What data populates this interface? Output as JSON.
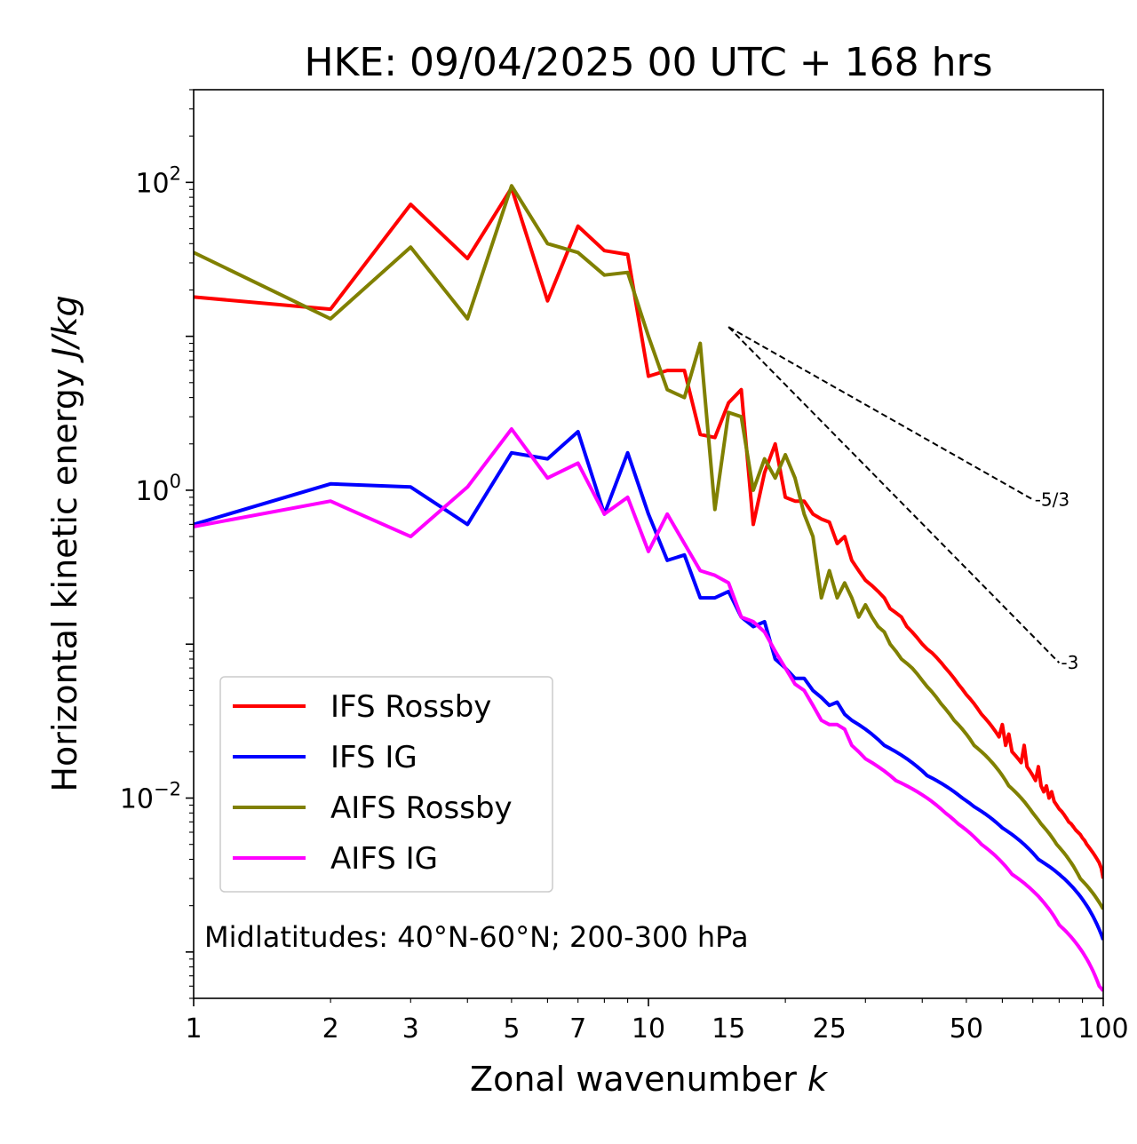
{
  "chart_data": {
    "type": "line",
    "title": "HKE: 09/04/2025 00 UTC + 168 hrs",
    "xlabel": "Zonal wavenumber",
    "xlabel_var": "k",
    "ylabel": "Horizontal kinetic energy",
    "ylabel_unit": "J/kg",
    "xscale": "log",
    "yscale": "log",
    "xlim": [
      1,
      100
    ],
    "ylim": [
      0.0005,
      400
    ],
    "x_ticks": [
      {
        "value": 1,
        "label": "1"
      },
      {
        "value": 2,
        "label": "2"
      },
      {
        "value": 3,
        "label": "3"
      },
      {
        "value": 5,
        "label": "5"
      },
      {
        "value": 7,
        "label": "7"
      },
      {
        "value": 10,
        "label": "10"
      },
      {
        "value": 15,
        "label": "15"
      },
      {
        "value": 25,
        "label": "25"
      },
      {
        "value": 50,
        "label": "50"
      },
      {
        "value": 100,
        "label": "100"
      }
    ],
    "y_ticks": [
      {
        "value": 100,
        "base": "10",
        "exp": "2"
      },
      {
        "value": 1,
        "base": "10",
        "exp": "0"
      },
      {
        "value": 0.01,
        "base": "10",
        "exp": "−2"
      }
    ],
    "legend_placement": "lower-left",
    "annotation": "Midlatitudes: 40°N-60°N; 200-300 hPa",
    "reference_slopes": [
      {
        "label": "-5/3",
        "x": [
          15,
          70
        ],
        "y": [
          11.5,
          0.87
        ]
      },
      {
        "label": "-3",
        "x": [
          15,
          80
        ],
        "y": [
          11.5,
          0.0757
        ]
      }
    ],
    "series": [
      {
        "name": "IFS Rossby",
        "color": "#ff0000",
        "x": [
          1,
          2,
          3,
          4,
          5,
          6,
          7,
          8,
          9,
          10,
          11,
          12,
          13,
          14,
          15,
          16,
          17,
          18,
          19,
          20,
          21,
          22,
          23,
          24,
          25,
          26,
          27,
          28,
          29,
          30,
          31,
          32,
          33,
          34,
          35,
          36,
          37,
          38,
          39,
          40,
          41,
          42,
          43,
          44,
          45,
          46,
          47,
          48,
          49,
          50,
          51,
          52,
          53,
          54,
          55,
          56,
          57,
          58,
          59,
          60,
          61,
          62,
          63,
          64,
          65,
          66,
          67,
          68,
          69,
          70,
          71,
          72,
          73,
          74,
          75,
          76,
          77,
          78,
          79,
          80,
          81,
          82,
          83,
          84,
          85,
          86,
          87,
          88,
          89,
          90,
          91,
          92,
          93,
          94,
          95,
          96,
          97,
          98,
          99,
          100
        ],
        "y": [
          18,
          15,
          72,
          32,
          92,
          17,
          52,
          36,
          34,
          5.5,
          6,
          6,
          2.3,
          2.2,
          3.7,
          4.5,
          0.6,
          1.3,
          2,
          0.9,
          0.85,
          0.85,
          0.7,
          0.65,
          0.62,
          0.45,
          0.5,
          0.35,
          0.3,
          0.26,
          0.24,
          0.22,
          0.2,
          0.17,
          0.16,
          0.15,
          0.13,
          0.12,
          0.11,
          0.1,
          0.093,
          0.088,
          0.082,
          0.076,
          0.07,
          0.065,
          0.06,
          0.055,
          0.051,
          0.047,
          0.044,
          0.041,
          0.038,
          0.035,
          0.033,
          0.031,
          0.029,
          0.027,
          0.025,
          0.03,
          0.022,
          0.026,
          0.02,
          0.019,
          0.018,
          0.017,
          0.022,
          0.016,
          0.015,
          0.014,
          0.013,
          0.016,
          0.012,
          0.011,
          0.012,
          0.01,
          0.011,
          0.0095,
          0.009,
          0.0085,
          0.0082,
          0.0078,
          0.0074,
          0.007,
          0.0068,
          0.0065,
          0.0062,
          0.006,
          0.0058,
          0.0055,
          0.0053,
          0.005,
          0.0048,
          0.0046,
          0.0044,
          0.0042,
          0.004,
          0.0038,
          0.0035,
          0.003
        ]
      },
      {
        "name": "IFS IG",
        "color": "#0000ff",
        "x": [
          1,
          2,
          3,
          4,
          5,
          6,
          7,
          8,
          9,
          10,
          11,
          12,
          13,
          14,
          15,
          16,
          17,
          18,
          19,
          20,
          21,
          22,
          23,
          24,
          25,
          26,
          27,
          28,
          29,
          30,
          31,
          32,
          33,
          34,
          35,
          36,
          37,
          38,
          39,
          40,
          41,
          42,
          43,
          44,
          45,
          46,
          47,
          48,
          49,
          50,
          51,
          52,
          53,
          54,
          55,
          56,
          57,
          58,
          59,
          60,
          61,
          62,
          63,
          64,
          65,
          66,
          67,
          68,
          69,
          70,
          71,
          72,
          73,
          74,
          75,
          76,
          77,
          78,
          79,
          80,
          81,
          82,
          83,
          84,
          85,
          86,
          87,
          88,
          89,
          90,
          91,
          92,
          93,
          94,
          95,
          96,
          97,
          98,
          99,
          100
        ],
        "y": [
          0.6,
          1.1,
          1.05,
          0.6,
          1.75,
          1.6,
          2.4,
          0.7,
          1.75,
          0.7,
          0.35,
          0.38,
          0.2,
          0.2,
          0.22,
          0.15,
          0.13,
          0.14,
          0.08,
          0.07,
          0.06,
          0.06,
          0.05,
          0.045,
          0.04,
          0.042,
          0.035,
          0.032,
          0.03,
          0.028,
          0.026,
          0.024,
          0.022,
          0.021,
          0.02,
          0.019,
          0.018,
          0.017,
          0.016,
          0.015,
          0.014,
          0.0135,
          0.013,
          0.0125,
          0.012,
          0.0115,
          0.011,
          0.0105,
          0.01,
          0.0096,
          0.0092,
          0.0088,
          0.0085,
          0.0082,
          0.0079,
          0.0076,
          0.0073,
          0.007,
          0.0067,
          0.0064,
          0.0062,
          0.006,
          0.0058,
          0.0056,
          0.0054,
          0.0052,
          0.005,
          0.0048,
          0.0046,
          0.0044,
          0.0042,
          0.004,
          0.0039,
          0.0038,
          0.0037,
          0.0036,
          0.0035,
          0.0034,
          0.0033,
          0.0032,
          0.0031,
          0.003,
          0.0029,
          0.0028,
          0.0027,
          0.0026,
          0.0025,
          0.0024,
          0.0023,
          0.0022,
          0.0021,
          0.002,
          0.0019,
          0.0018,
          0.0017,
          0.0016,
          0.0015,
          0.0014,
          0.0013,
          0.0012
        ]
      },
      {
        "name": "AIFS Rossby",
        "color": "#808000",
        "x": [
          1,
          2,
          3,
          4,
          5,
          6,
          7,
          8,
          9,
          10,
          11,
          12,
          13,
          14,
          15,
          16,
          17,
          18,
          19,
          20,
          21,
          22,
          23,
          24,
          25,
          26,
          27,
          28,
          29,
          30,
          31,
          32,
          33,
          34,
          35,
          36,
          37,
          38,
          39,
          40,
          41,
          42,
          43,
          44,
          45,
          46,
          47,
          48,
          49,
          50,
          51,
          52,
          53,
          54,
          55,
          56,
          57,
          58,
          59,
          60,
          61,
          62,
          63,
          64,
          65,
          66,
          67,
          68,
          69,
          70,
          71,
          72,
          73,
          74,
          75,
          76,
          77,
          78,
          79,
          80,
          81,
          82,
          83,
          84,
          85,
          86,
          87,
          88,
          89,
          90,
          91,
          92,
          93,
          94,
          95,
          96,
          97,
          98,
          99,
          100
        ],
        "y": [
          35,
          13,
          38,
          13,
          95,
          40,
          35,
          25,
          26,
          10,
          4.5,
          4,
          9,
          0.75,
          3.2,
          3,
          1,
          1.6,
          1.2,
          1.7,
          1.2,
          0.7,
          0.5,
          0.2,
          0.3,
          0.2,
          0.25,
          0.2,
          0.15,
          0.18,
          0.15,
          0.13,
          0.12,
          0.1,
          0.09,
          0.08,
          0.075,
          0.07,
          0.064,
          0.058,
          0.053,
          0.049,
          0.045,
          0.041,
          0.038,
          0.035,
          0.032,
          0.03,
          0.028,
          0.026,
          0.024,
          0.022,
          0.021,
          0.02,
          0.019,
          0.018,
          0.017,
          0.016,
          0.015,
          0.014,
          0.013,
          0.012,
          0.0115,
          0.011,
          0.0105,
          0.01,
          0.0095,
          0.009,
          0.0085,
          0.008,
          0.0076,
          0.0072,
          0.0068,
          0.0065,
          0.0062,
          0.0059,
          0.0056,
          0.0053,
          0.005,
          0.0048,
          0.0046,
          0.0044,
          0.0042,
          0.004,
          0.0038,
          0.0036,
          0.0034,
          0.0032,
          0.003,
          0.0029,
          0.0028,
          0.0027,
          0.0026,
          0.0025,
          0.0024,
          0.0023,
          0.0022,
          0.0021,
          0.002,
          0.0019
        ]
      },
      {
        "name": "AIFS IG",
        "color": "#ff00ff",
        "x": [
          1,
          2,
          3,
          4,
          5,
          6,
          7,
          8,
          9,
          10,
          11,
          12,
          13,
          14,
          15,
          16,
          17,
          18,
          19,
          20,
          21,
          22,
          23,
          24,
          25,
          26,
          27,
          28,
          29,
          30,
          31,
          32,
          33,
          34,
          35,
          36,
          37,
          38,
          39,
          40,
          41,
          42,
          43,
          44,
          45,
          46,
          47,
          48,
          49,
          50,
          51,
          52,
          53,
          54,
          55,
          56,
          57,
          58,
          59,
          60,
          61,
          62,
          63,
          64,
          65,
          66,
          67,
          68,
          69,
          70,
          71,
          72,
          73,
          74,
          75,
          76,
          77,
          78,
          79,
          80,
          81,
          82,
          83,
          84,
          85,
          86,
          87,
          88,
          89,
          90,
          91,
          92,
          93,
          94,
          95,
          96,
          97,
          98,
          99,
          100
        ],
        "y": [
          0.58,
          0.85,
          0.5,
          1.05,
          2.5,
          1.2,
          1.5,
          0.7,
          0.9,
          0.4,
          0.7,
          0.45,
          0.3,
          0.28,
          0.25,
          0.15,
          0.14,
          0.12,
          0.09,
          0.07,
          0.055,
          0.05,
          0.04,
          0.032,
          0.03,
          0.03,
          0.028,
          0.022,
          0.02,
          0.018,
          0.017,
          0.016,
          0.015,
          0.014,
          0.013,
          0.0125,
          0.012,
          0.0115,
          0.011,
          0.0105,
          0.01,
          0.0095,
          0.009,
          0.0085,
          0.008,
          0.0076,
          0.0072,
          0.0068,
          0.0065,
          0.0062,
          0.0059,
          0.0056,
          0.0053,
          0.005,
          0.0048,
          0.0046,
          0.0044,
          0.0042,
          0.004,
          0.0038,
          0.0036,
          0.0034,
          0.0032,
          0.0031,
          0.003,
          0.0029,
          0.0028,
          0.0027,
          0.0026,
          0.0025,
          0.0024,
          0.0023,
          0.0022,
          0.0021,
          0.002,
          0.0019,
          0.0018,
          0.0017,
          0.0016,
          0.0015,
          0.00145,
          0.0014,
          0.00135,
          0.0013,
          0.00125,
          0.0012,
          0.00115,
          0.0011,
          0.00105,
          0.001,
          0.00095,
          0.0009,
          0.00085,
          0.0008,
          0.00075,
          0.0007,
          0.00065,
          0.0006,
          0.00058,
          0.00056
        ]
      }
    ]
  }
}
